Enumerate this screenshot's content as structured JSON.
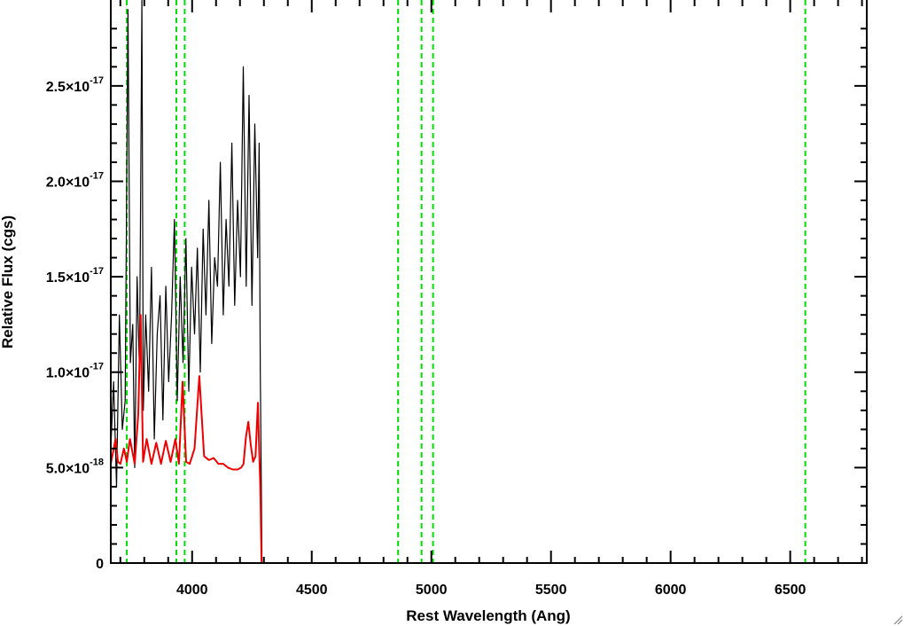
{
  "chart_data": {
    "type": "line",
    "title": "",
    "xlabel": "Rest Wavelength (Ang)",
    "ylabel": "Relative Flux (cgs)",
    "xlim": [
      3660,
      6820
    ],
    "ylim": [
      0,
      2.95e-17
    ],
    "x_ticks": [
      {
        "value": 4000,
        "label": "4000"
      },
      {
        "value": 4500,
        "label": "4500"
      },
      {
        "value": 5000,
        "label": "5000"
      },
      {
        "value": 5500,
        "label": "5500"
      },
      {
        "value": 6000,
        "label": "6000"
      },
      {
        "value": 6500,
        "label": "6500"
      }
    ],
    "y_ticks": [
      {
        "value": 0,
        "mantissa": "0",
        "exponent": ""
      },
      {
        "value": 5e-18,
        "mantissa": "5.0×10",
        "exponent": "-18"
      },
      {
        "value": 1e-17,
        "mantissa": "1.0×10",
        "exponent": "-17"
      },
      {
        "value": 1.5e-17,
        "mantissa": "1.5×10",
        "exponent": "-17"
      },
      {
        "value": 2e-17,
        "mantissa": "2.0×10",
        "exponent": "-17"
      },
      {
        "value": 2.5e-17,
        "mantissa": "2.5×10",
        "exponent": "-17"
      }
    ],
    "grid": false,
    "legend": "none",
    "colors": {
      "flux": "#000000",
      "error": "#ee0000",
      "lines": "#00dd00",
      "axes": "#000000"
    },
    "reference_lines": [
      3727,
      3934,
      3969,
      4861,
      4959,
      5007,
      6563
    ],
    "series": [
      {
        "role": "flux",
        "x": [
          3660,
          3672,
          3684,
          3696,
          3708,
          3720,
          3732,
          3742,
          3752,
          3760,
          3770,
          3780,
          3790,
          3796,
          3806,
          3818,
          3830,
          3842,
          3854,
          3866,
          3878,
          3890,
          3902,
          3914,
          3926,
          3938,
          3950,
          3962,
          3974,
          3986,
          3998,
          4010,
          4022,
          4034,
          4046,
          4058,
          4070,
          4082,
          4094,
          4106,
          4118,
          4130,
          4142,
          4154,
          4166,
          4178,
          4190,
          4202,
          4214,
          4226,
          4238,
          4250,
          4262,
          4274,
          4280,
          4285,
          4288,
          4292,
          4300,
          4400,
          4600,
          4800,
          5000,
          5200,
          5400,
          5600,
          5800,
          6000,
          6200,
          6400,
          6600,
          6820
        ],
        "y": [
          6e-18,
          9.5e-18,
          4e-18,
          1.3e-17,
          7e-18,
          8.5e-18,
          2.9e-17,
          1.05e-17,
          1.25e-17,
          5e-18,
          1.5e-17,
          1e-17,
          2.95e-17,
          8e-18,
          1.3e-17,
          9e-18,
          1.55e-17,
          6.5e-18,
          1.2e-17,
          1.4e-17,
          7.5e-18,
          1.45e-17,
          9.5e-18,
          1.3e-17,
          1.8e-17,
          8.5e-18,
          1.5e-17,
          1.05e-17,
          1.7e-17,
          9e-18,
          1.55e-17,
          1.2e-17,
          1.65e-17,
          1e-17,
          1.75e-17,
          1.3e-17,
          1.9e-17,
          1.15e-17,
          1.6e-17,
          1.45e-17,
          2.1e-17,
          1.3e-17,
          1.8e-17,
          1.45e-17,
          2.2e-17,
          1.35e-17,
          1.9e-17,
          1.5e-17,
          2.6e-17,
          1.45e-17,
          2.45e-17,
          1.35e-17,
          2.3e-17,
          1.6e-17,
          2.2e-17,
          1e-17,
          6e-18,
          0,
          0,
          0,
          0,
          0,
          0,
          0,
          0,
          0,
          0,
          0,
          0,
          0,
          0,
          0
        ]
      },
      {
        "role": "error",
        "x": [
          3660,
          3680,
          3690,
          3700,
          3715,
          3727,
          3740,
          3760,
          3775,
          3785,
          3795,
          3810,
          3830,
          3850,
          3870,
          3890,
          3910,
          3930,
          3945,
          3960,
          3975,
          3990,
          4010,
          4030,
          4050,
          4070,
          4090,
          4110,
          4130,
          4150,
          4170,
          4190,
          4205,
          4215,
          4225,
          4235,
          4245,
          4255,
          4265,
          4275,
          4280,
          4285,
          4290,
          4300,
          4500,
          5000,
          5500,
          6000,
          6500,
          6820
        ],
        "y": [
          5.2e-18,
          6.5e-18,
          5.3e-18,
          5.2e-18,
          6e-18,
          5.3e-18,
          6.5e-18,
          5.2e-18,
          7.8e-18,
          1.3e-17,
          5.3e-18,
          6.5e-18,
          5.2e-18,
          6.3e-18,
          5.2e-18,
          6.4e-18,
          5.3e-18,
          6.5e-18,
          5.2e-18,
          9.5e-18,
          5.3e-18,
          5.2e-18,
          6e-18,
          9.8e-18,
          5.6e-18,
          5.4e-18,
          5.5e-18,
          5.2e-18,
          5.2e-18,
          5e-18,
          4.9e-18,
          4.9e-18,
          5e-18,
          5.2e-18,
          6.6e-18,
          7.4e-18,
          6.2e-18,
          5.3e-18,
          5.6e-18,
          8.4e-18,
          6e-18,
          4e-18,
          0,
          0,
          0,
          0,
          0,
          0,
          0,
          0
        ]
      }
    ]
  }
}
